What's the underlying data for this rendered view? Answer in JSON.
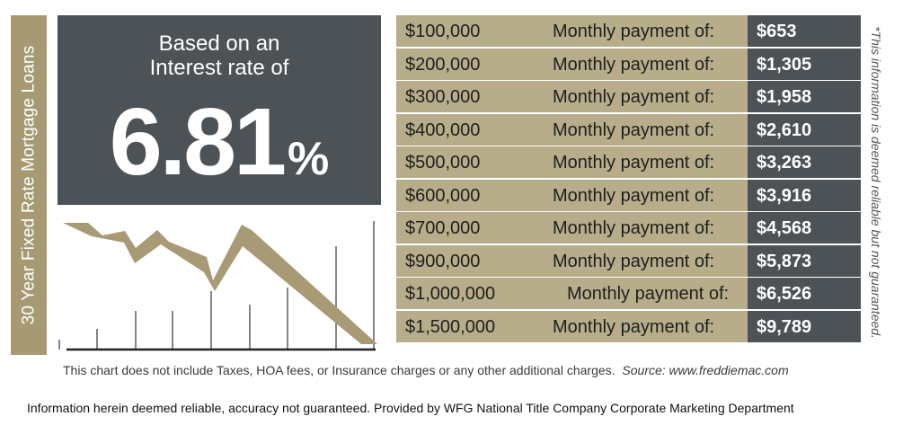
{
  "side_label": "30 Year Fixed Rate Mortgage Loans",
  "rate": {
    "intro_line1": "Based on an",
    "intro_line2": "Interest rate of",
    "value": "6.81",
    "unit": "%"
  },
  "payments": [
    {
      "amount": "$100,000",
      "label": "Monthly payment of:",
      "payment": "$653"
    },
    {
      "amount": "$200,000",
      "label": "Monthly payment of:",
      "payment": "$1,305"
    },
    {
      "amount": "$300,000",
      "label": "Monthly payment of:",
      "payment": "$1,958"
    },
    {
      "amount": "$400,000",
      "label": "Monthly payment of:",
      "payment": "$2,610"
    },
    {
      "amount": "$500,000",
      "label": "Monthly payment of:",
      "payment": "$3,263"
    },
    {
      "amount": "$600,000",
      "label": "Monthly payment of:",
      "payment": "$3,916"
    },
    {
      "amount": "$700,000",
      "label": "Monthly payment of:",
      "payment": "$4,568"
    },
    {
      "amount": "$900,000",
      "label": "Monthly payment of:",
      "payment": "$5,873"
    },
    {
      "amount": "$1,000,000",
      "label": "Monthly payment of:",
      "payment": "$6,526"
    },
    {
      "amount": "$1,500,000",
      "label": "Monthly payment of:",
      "payment": "$9,789"
    }
  ],
  "side_disclaimer": "*This information is deemed reliable but not guaranteed.",
  "note": {
    "text": "This chart does not include Taxes, HOA fees, or Insurance charges or any other additional charges.",
    "source": "Source: www.freddiemac.com"
  },
  "footer": "Information herein deemed reliable, accuracy not guaranteed. Provided by WFG National Title Company Corporate Marketing Department",
  "colors": {
    "dark_panel": "#4d5257",
    "gold": "#b8ad8a",
    "gold_band": "#a79a73",
    "arrow": "#a89a74"
  }
}
